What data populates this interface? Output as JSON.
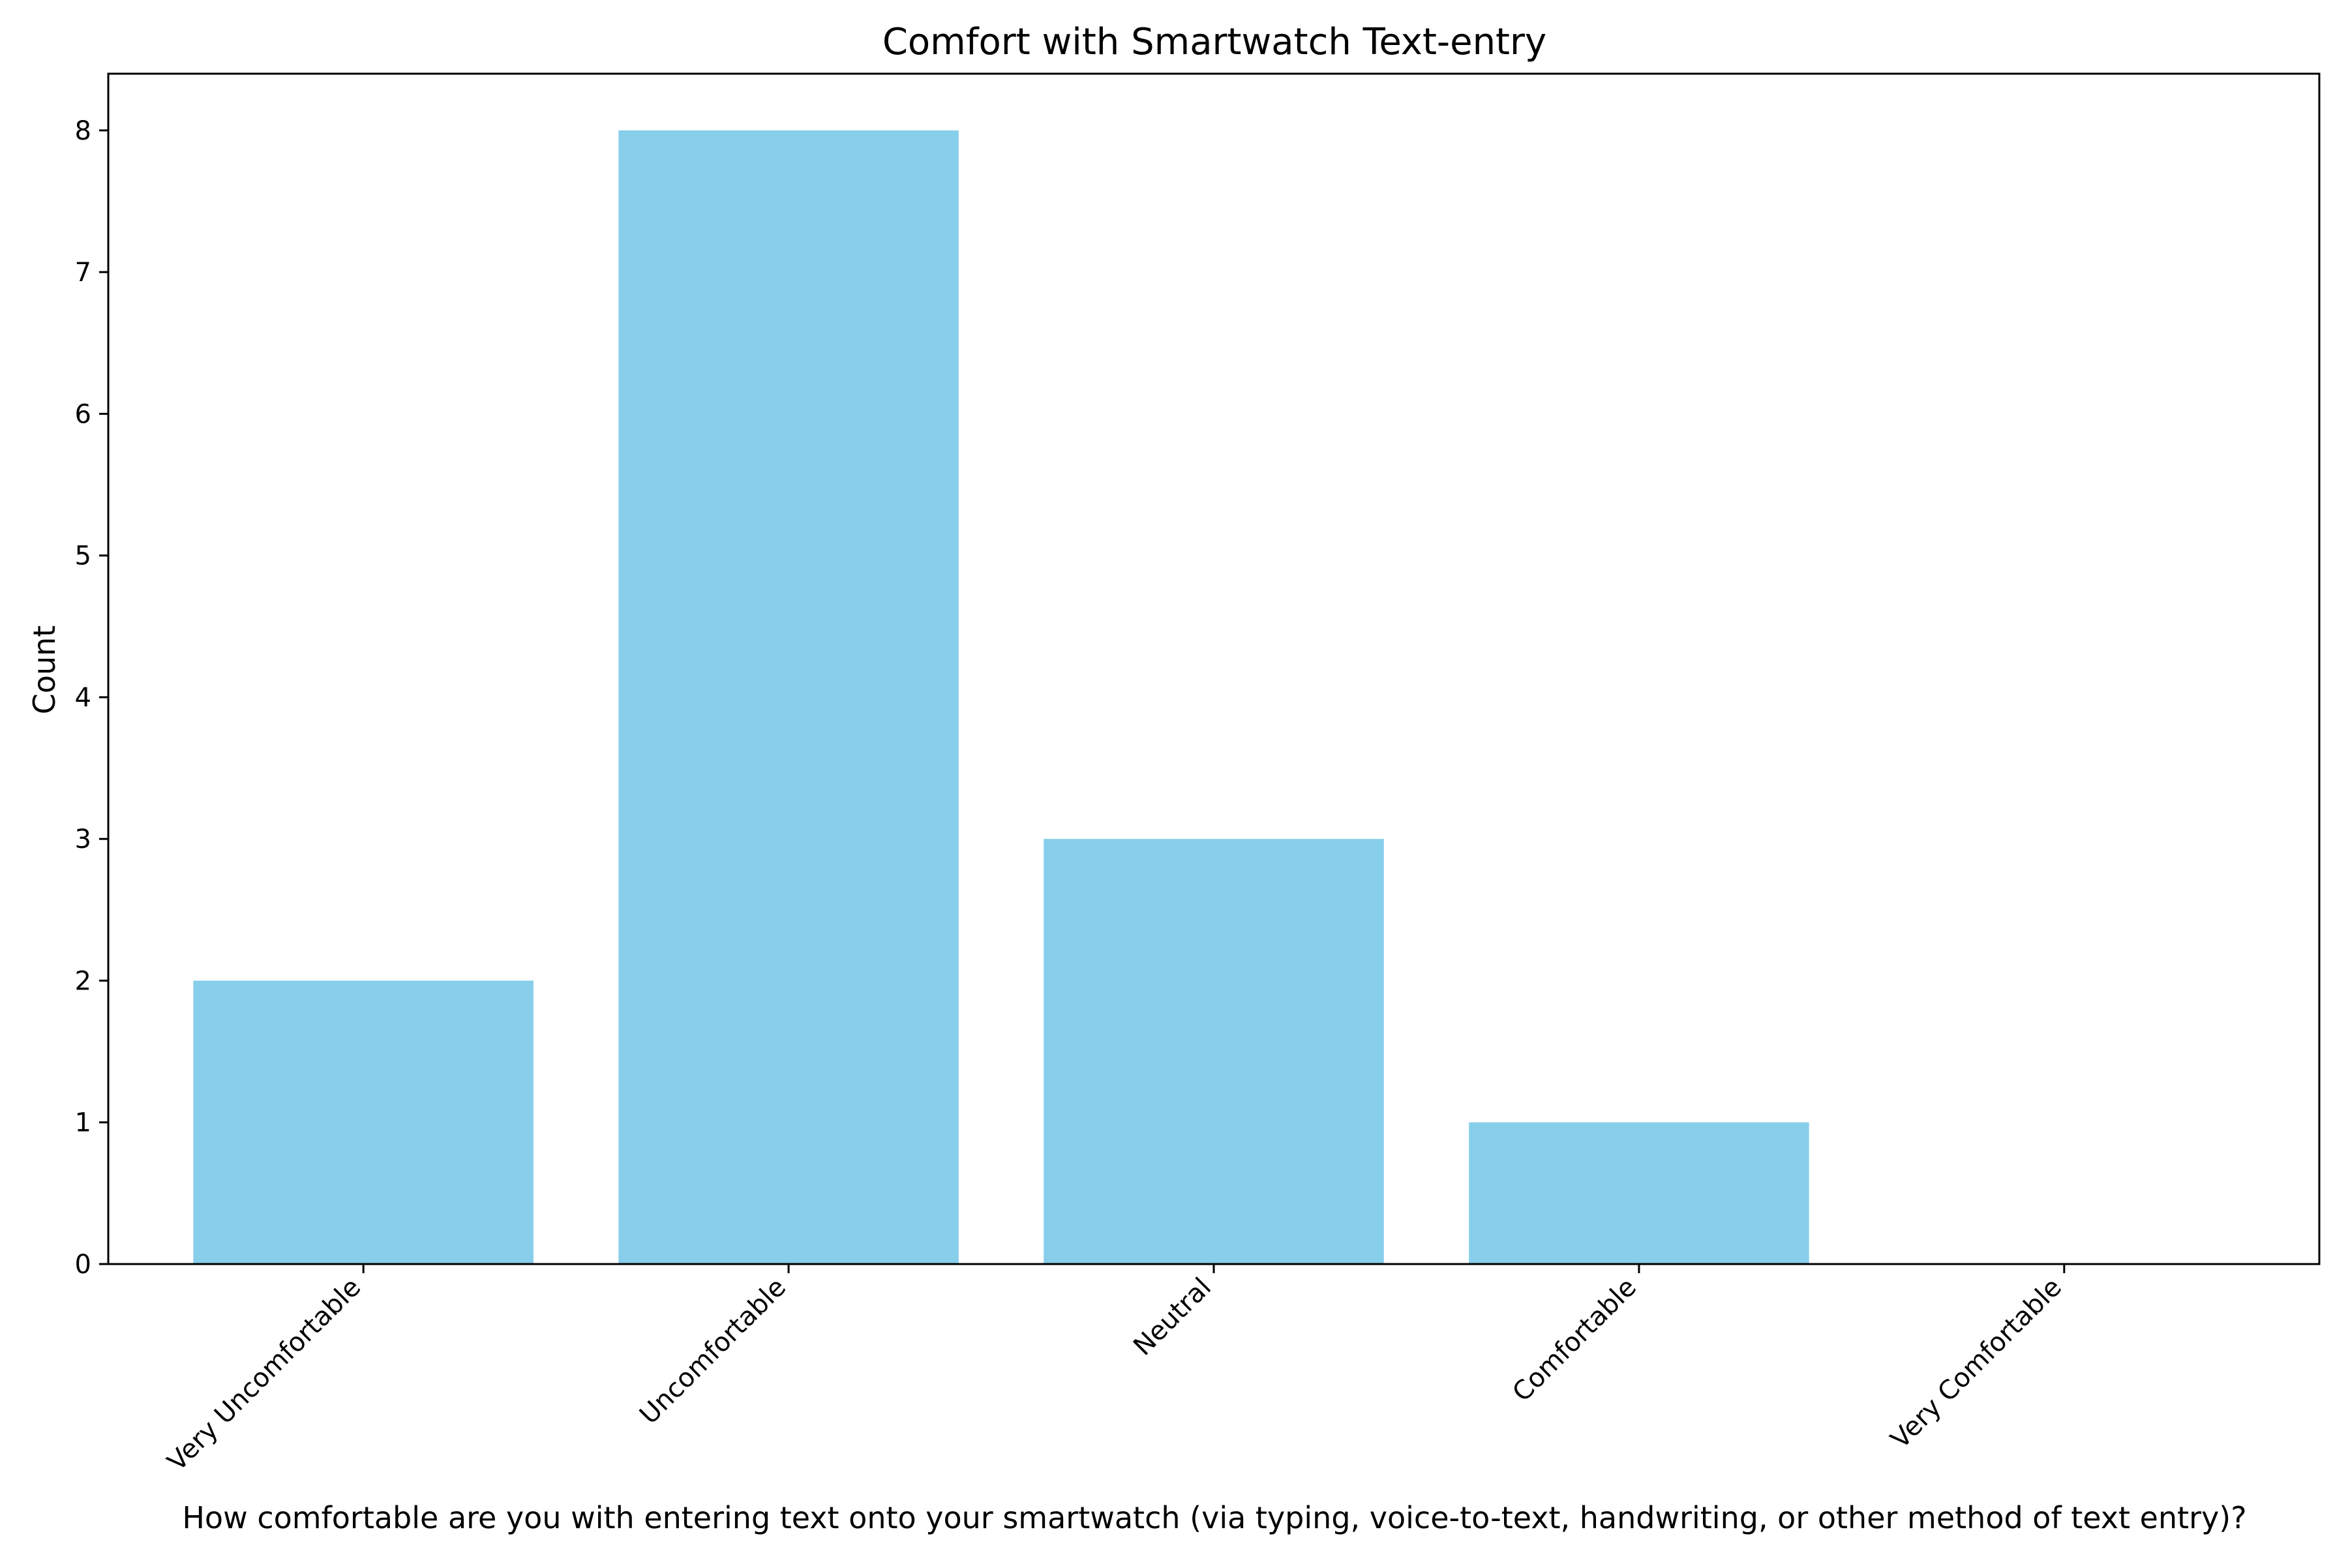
{
  "chart_data": {
    "type": "bar",
    "title": "Comfort with Smartwatch Text-entry",
    "xlabel": "How comfortable are you with entering text onto your smartwatch (via typing, voice-to-text, handwriting, or other method of text entry)?",
    "ylabel": "Count",
    "categories": [
      "Very Uncomfortable",
      "Uncomfortable",
      "Neutral",
      "Comfortable",
      "Very Comfortable"
    ],
    "values": [
      2,
      8,
      3,
      1,
      0
    ],
    "y_ticks": [
      "0",
      "1",
      "2",
      "3",
      "4",
      "5",
      "6",
      "7",
      "8"
    ],
    "ylim": [
      0,
      8.4
    ],
    "grid": false,
    "legend": "none",
    "bar_color": "#87CEEB"
  }
}
